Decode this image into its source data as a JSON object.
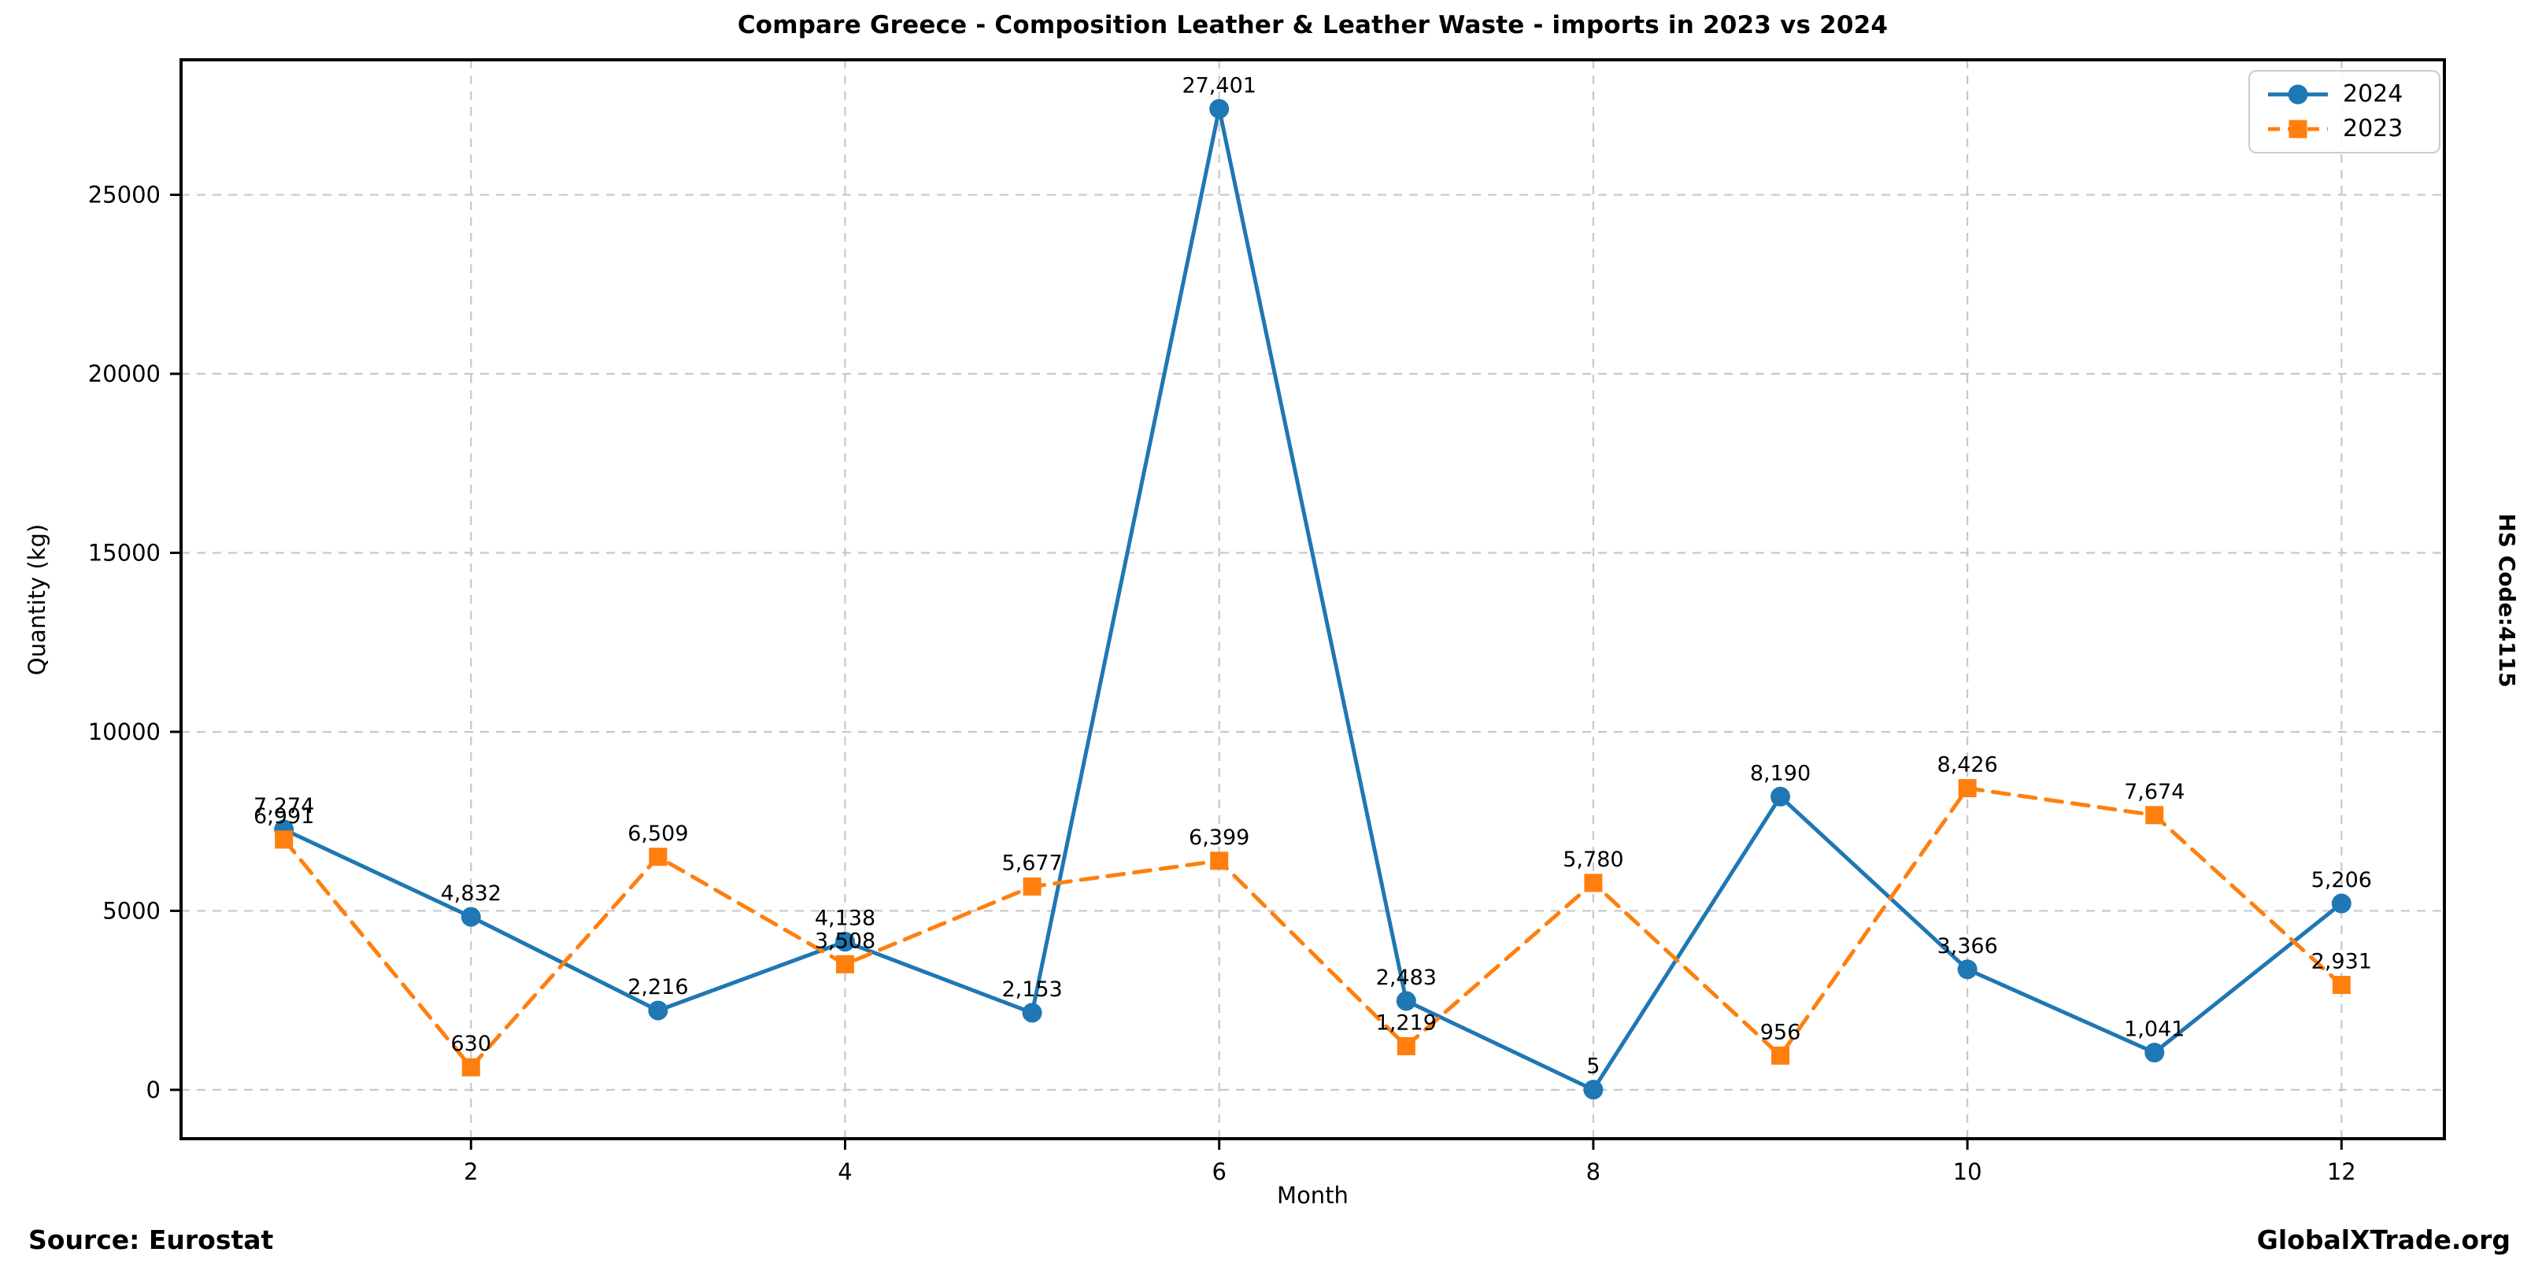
{
  "title": "Compare Greece - Composition Leather & Leather Waste - imports in 2023 vs 2024",
  "right_label": "HS Code:4115",
  "footer": {
    "source": "Source: Eurostat",
    "site": "GlobalXTrade.org"
  },
  "chart_data": {
    "type": "line",
    "title": "Compare Greece - Composition Leather & Leather Waste - imports in 2023 vs 2024",
    "xlabel": "Month",
    "ylabel": "Quantity (kg)",
    "x": [
      1,
      2,
      3,
      4,
      5,
      6,
      7,
      8,
      9,
      10,
      11,
      12
    ],
    "x_ticks": [
      2,
      4,
      6,
      8,
      10,
      12
    ],
    "y_ticks": [
      0,
      5000,
      10000,
      15000,
      20000,
      25000
    ],
    "y_tick_labels": [
      "0",
      "5000",
      "10000",
      "15000",
      "20000",
      "25000"
    ],
    "xlim": [
      0.45,
      12.55
    ],
    "ylim": [
      -1365,
      28771
    ],
    "grid": true,
    "legend_position": "upper right",
    "series": [
      {
        "name": "2024",
        "color": "#1f77b4",
        "marker": "circle",
        "line_style": "solid",
        "values": [
          7274,
          4832,
          2216,
          4138,
          2153,
          27401,
          2483,
          5,
          8190,
          3366,
          1041,
          5206
        ],
        "labels": [
          "7,274",
          "4,832",
          "2,216",
          "4,138",
          "2,153",
          "27,401",
          "2,483",
          "5",
          "8,190",
          "3,366",
          "1,041",
          "5,206"
        ]
      },
      {
        "name": "2023",
        "color": "#ff7f0e",
        "marker": "square",
        "line_style": "dashed",
        "values": [
          6991,
          630,
          6509,
          3508,
          5677,
          6399,
          1219,
          5780,
          956,
          8426,
          7674,
          2931
        ],
        "labels": [
          "6,991",
          "630",
          "6,509",
          "3,508",
          "5,677",
          "6,399",
          "1,219",
          "5,780",
          "956",
          "8,426",
          "7,674",
          "2,931"
        ]
      }
    ]
  },
  "colors": {
    "grid": "#c8c8c8",
    "spine": "#000000",
    "background": "#ffffff",
    "legend_border": "#cccccc",
    "text": "#000000"
  }
}
